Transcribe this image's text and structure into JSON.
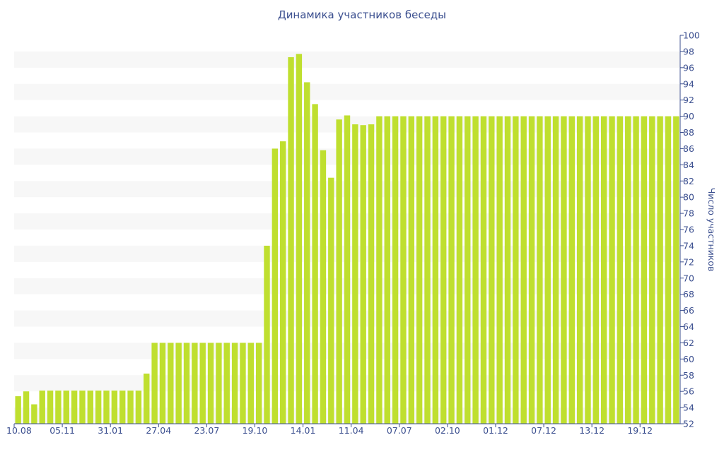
{
  "chart_data": {
    "type": "bar",
    "title": "Динамика участников беседы",
    "ylabel": "Число участников",
    "xlabel": "",
    "ylim": [
      52,
      100
    ],
    "yticks": [
      52,
      54,
      56,
      58,
      60,
      62,
      64,
      66,
      68,
      70,
      72,
      74,
      76,
      78,
      80,
      82,
      84,
      86,
      88,
      90,
      92,
      94,
      96,
      98,
      100
    ],
    "xtick_labels": [
      "10.08",
      "05.11",
      "31.01",
      "27.04",
      "23.07",
      "19.10",
      "14.01",
      "11.04",
      "07.07",
      "02.10",
      "01.12",
      "07.12",
      "13.12",
      "19.12"
    ],
    "xtick_bar_index": [
      0,
      6,
      12,
      18,
      24,
      30,
      36,
      42,
      48,
      54,
      60,
      66,
      72,
      78
    ],
    "values": [
      55.4,
      56,
      54.4,
      56.1,
      56.1,
      56.1,
      56.1,
      56.1,
      56.1,
      56.1,
      56.1,
      56.1,
      56.1,
      56.1,
      56.1,
      56.1,
      58.2,
      62,
      62,
      62,
      62,
      62,
      62,
      62,
      62,
      62,
      62,
      62,
      62,
      62,
      62,
      74,
      86,
      86.9,
      97.3,
      97.7,
      94.2,
      91.5,
      85.8,
      82.4,
      89.6,
      90.1,
      89,
      88.9,
      89,
      90,
      90,
      90,
      90,
      90,
      90,
      90,
      90,
      90,
      90,
      90,
      90,
      90,
      90,
      90,
      90,
      90,
      90,
      90,
      90,
      90,
      90,
      90,
      90,
      90,
      90,
      90,
      90,
      90,
      90,
      90,
      90,
      90,
      90,
      90,
      90,
      90,
      90
    ],
    "bar_color": "#bfdf2f",
    "band_color": "#f7f7f7",
    "axis_color": "#3b4f8f",
    "grid": "alternating-bands",
    "y_axis_side": "right"
  }
}
